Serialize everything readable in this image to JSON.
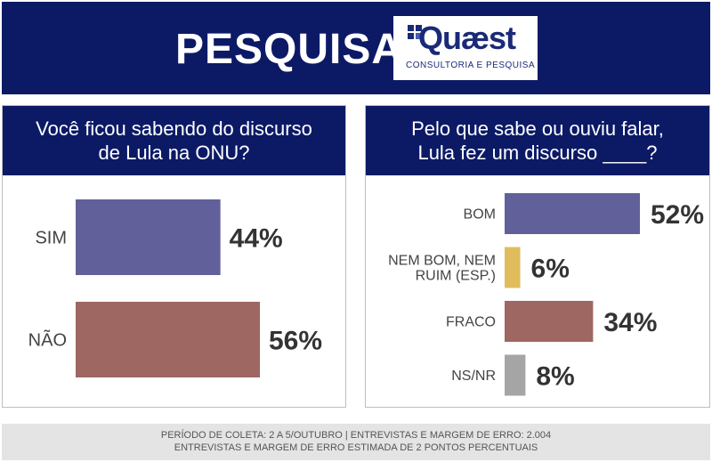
{
  "header": {
    "title": "PESQUISA",
    "logo_name": "Quæst",
    "logo_tagline": "CONSULTORIA E PESQUISA",
    "background": "#0c1a66"
  },
  "left_panel": {
    "question_line1": "Você ficou sabendo do discurso",
    "question_line2": "de Lula na ONU?"
  },
  "right_panel": {
    "question_line1": "Pelo que sabe ou ouviu falar,",
    "question_line2": "Lula fez um discurso ____?"
  },
  "footer": {
    "line1": "PERÍODO DE COLETA: 2 A 5/OUTUBRO | ENTREVISTAS E MARGEM DE ERRO: 2.004",
    "line2": "ENTREVISTAS E MARGEM DE ERRO ESTIMADA DE 2 PONTOS PERCENTUAIS"
  },
  "chart_data": [
    {
      "type": "bar",
      "orientation": "horizontal",
      "title": "Você ficou sabendo do discurso de Lula na ONU?",
      "categories": [
        "SIM",
        "NÃO"
      ],
      "values": [
        44,
        56
      ],
      "value_labels": [
        "44%",
        "56%"
      ],
      "colors": [
        "#62609a",
        "#9e6762"
      ],
      "xlim": [
        0,
        56
      ],
      "grid": false
    },
    {
      "type": "bar",
      "orientation": "horizontal",
      "title": "Pelo que sabe ou ouviu falar, Lula fez um discurso ____?",
      "categories": [
        [
          "BOM"
        ],
        [
          "NEM BOM, NEM",
          "RUIM (ESP.)"
        ],
        [
          "FRACO"
        ],
        [
          "NS/NR"
        ]
      ],
      "values": [
        52,
        6,
        34,
        8
      ],
      "value_labels": [
        "52%",
        "6%",
        "34%",
        "8%"
      ],
      "colors": [
        "#62609a",
        "#e0bc5c",
        "#9e6762",
        "#a5a5a5"
      ],
      "xlim": [
        0,
        52
      ],
      "grid": false
    }
  ]
}
